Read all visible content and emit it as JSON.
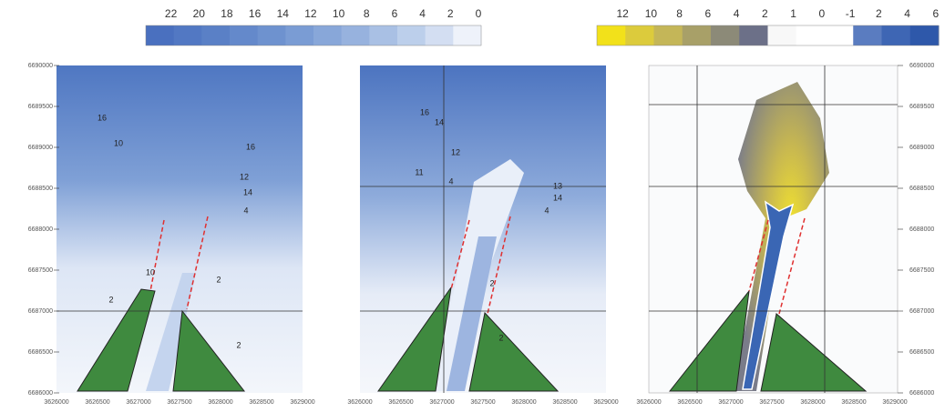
{
  "colorbars": [
    {
      "labels": [
        "22",
        "20",
        "18",
        "16",
        "14",
        "12",
        "10",
        "8",
        "6",
        "4",
        "2",
        "0"
      ]
    },
    {
      "labels": [
        "12",
        "10",
        "8",
        "6",
        "4",
        "2",
        "1",
        "0",
        "-1",
        "2",
        "4",
        "6"
      ]
    }
  ],
  "panels": [
    {
      "y_ticks": [
        "6690000",
        "6689500",
        "6689000",
        "6688500",
        "6688000",
        "6687500",
        "6687000",
        "6686500",
        "6686000"
      ],
      "x_ticks": [
        "3626000",
        "3626500",
        "3627000",
        "3627500",
        "3628000",
        "3628500",
        "3629000"
      ],
      "contour_labels": [
        "16",
        "10",
        "16",
        "12",
        "14",
        "4",
        "10",
        "2",
        "2",
        "2"
      ]
    },
    {
      "x_ticks": [
        "3626000",
        "3626500",
        "3627000",
        "3627500",
        "3628000",
        "3628500",
        "3629000"
      ],
      "contour_labels": [
        "16",
        "14",
        "12",
        "11",
        "4",
        "13",
        "14",
        "4",
        "2",
        "2"
      ]
    },
    {
      "y_ticks": [
        "6690000",
        "6689500",
        "6689000",
        "6688500",
        "6688000",
        "6687500",
        "6687000",
        "6686500",
        "6686000"
      ],
      "x_ticks": [
        "3626000",
        "3626500",
        "3627000",
        "3627500",
        "3628000",
        "3628500",
        "3629000"
      ]
    }
  ]
}
